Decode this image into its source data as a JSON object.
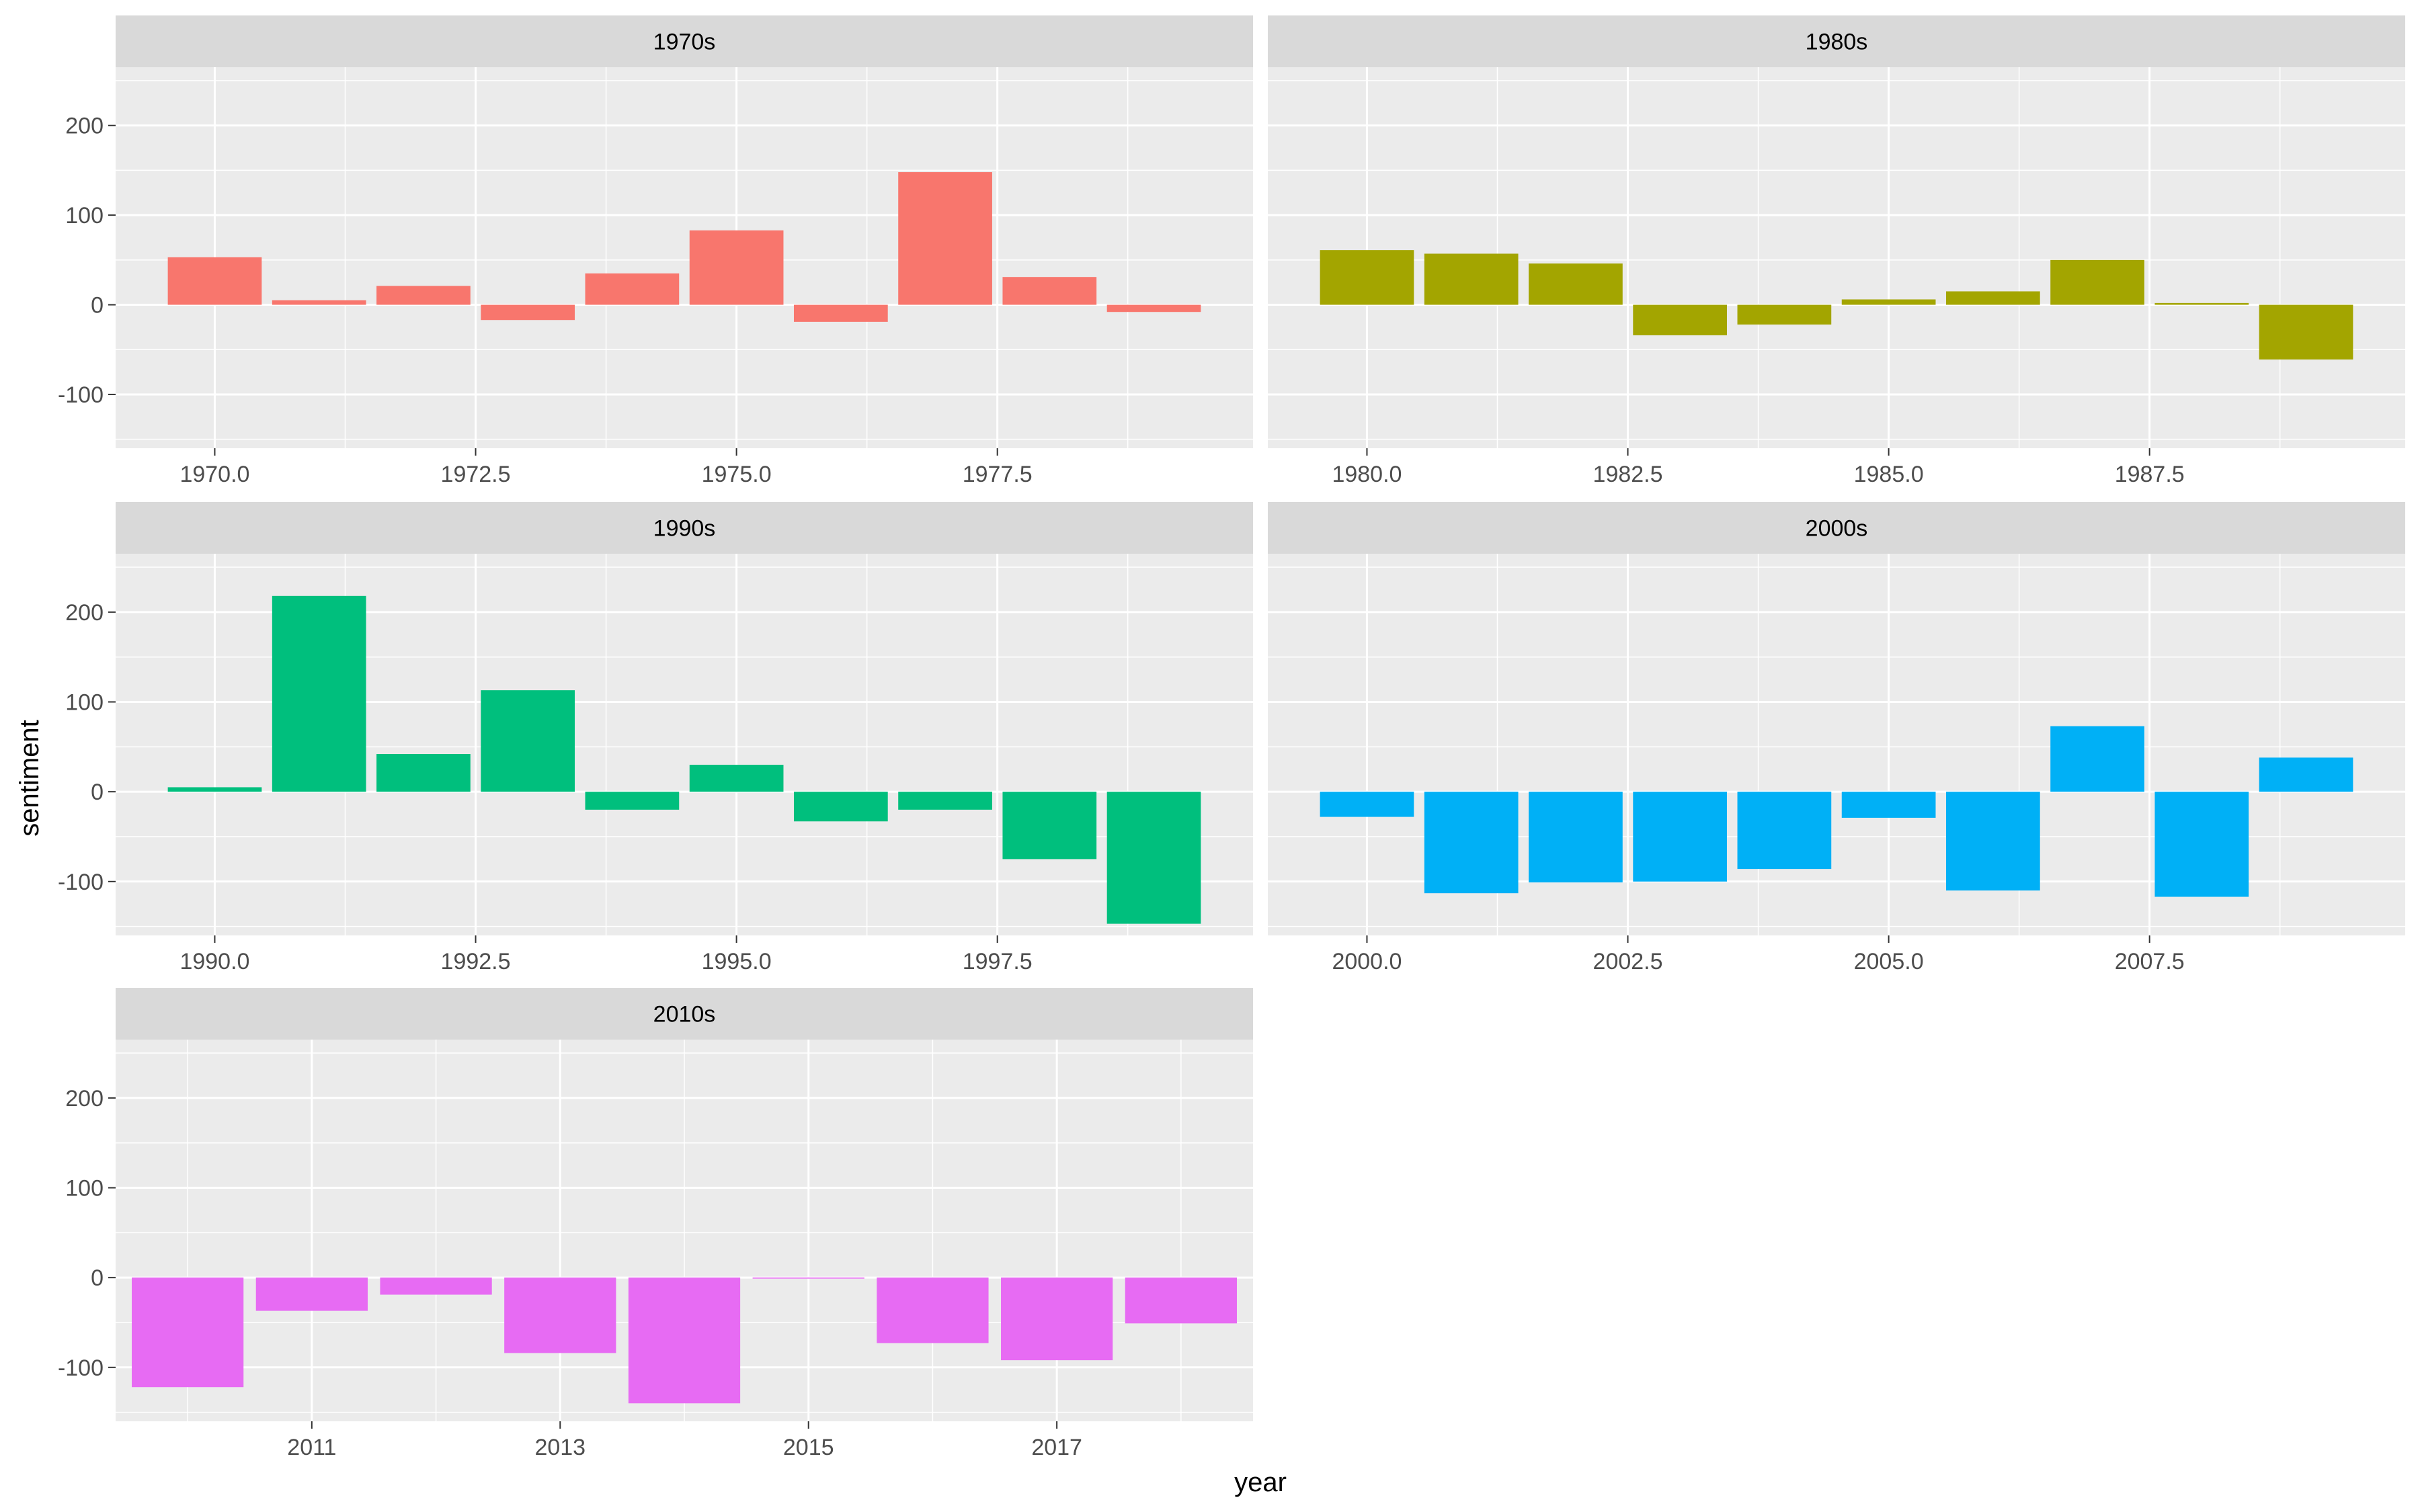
{
  "chart_data": {
    "type": "bar",
    "facet_layout": "3 rows x 2 columns, y scale shared",
    "xlabel": "year",
    "ylabel": "sentiment",
    "ylim": [
      -160,
      265
    ],
    "y_ticks": [
      -100,
      0,
      100,
      200
    ],
    "y_tick_labels": [
      "-100",
      "0",
      "100",
      "200"
    ],
    "panels": [
      {
        "facet": "1970s",
        "color": "#F8766D",
        "xlim": [
          1969.05,
          1979.95
        ],
        "x_ticks": [
          1970,
          1972.5,
          1975,
          1977.5
        ],
        "x_tick_labels": [
          "1970.0",
          "1972.5",
          "1975.0",
          "1977.5"
        ],
        "x": [
          1970,
          1971,
          1972,
          1973,
          1974,
          1975,
          1976,
          1977,
          1978,
          1979
        ],
        "values": [
          53,
          5,
          21,
          -17,
          35,
          83,
          -19,
          148,
          31,
          -8
        ]
      },
      {
        "facet": "1980s",
        "color": "#A3A500",
        "xlim": [
          1979.05,
          1989.95
        ],
        "x_ticks": [
          1980,
          1982.5,
          1985,
          1987.5
        ],
        "x_tick_labels": [
          "1980.0",
          "1982.5",
          "1985.0",
          "1987.5"
        ],
        "x": [
          1980,
          1981,
          1982,
          1983,
          1984,
          1985,
          1986,
          1987,
          1988,
          1989
        ],
        "values": [
          61,
          57,
          46,
          -34,
          -22,
          6,
          15,
          50,
          2,
          -61
        ]
      },
      {
        "facet": "1990s",
        "color": "#00BF7D",
        "xlim": [
          1989.05,
          1999.95
        ],
        "x_ticks": [
          1990,
          1992.5,
          1995,
          1997.5
        ],
        "x_tick_labels": [
          "1990.0",
          "1992.5",
          "1995.0",
          "1997.5"
        ],
        "x": [
          1990,
          1991,
          1992,
          1993,
          1994,
          1995,
          1996,
          1997,
          1998,
          1999
        ],
        "values": [
          5,
          218,
          42,
          113,
          -20,
          30,
          -33,
          -20,
          -75,
          -147
        ]
      },
      {
        "facet": "2000s",
        "color": "#00B0F6",
        "xlim": [
          1999.05,
          2009.95
        ],
        "x_ticks": [
          2000,
          2002.5,
          2005,
          2007.5
        ],
        "x_tick_labels": [
          "2000.0",
          "2002.5",
          "2005.0",
          "2007.5"
        ],
        "x": [
          2000,
          2001,
          2002,
          2003,
          2004,
          2005,
          2006,
          2007,
          2008,
          2009
        ],
        "values": [
          -28,
          -113,
          -101,
          -100,
          -86,
          -29,
          -110,
          73,
          -117,
          38
        ]
      },
      {
        "facet": "2010s",
        "color": "#E76BF3",
        "xlim": [
          2009.42,
          2018.58
        ],
        "x_ticks": [
          2011,
          2013,
          2015,
          2017
        ],
        "x_tick_labels": [
          "2011",
          "2013",
          "2015",
          "2017"
        ],
        "x": [
          2010,
          2011,
          2012,
          2013,
          2014,
          2015,
          2016,
          2017,
          2018
        ],
        "values": [
          -122,
          -37,
          -19,
          -84,
          -140,
          -1,
          -73,
          -92,
          -51
        ]
      }
    ]
  }
}
